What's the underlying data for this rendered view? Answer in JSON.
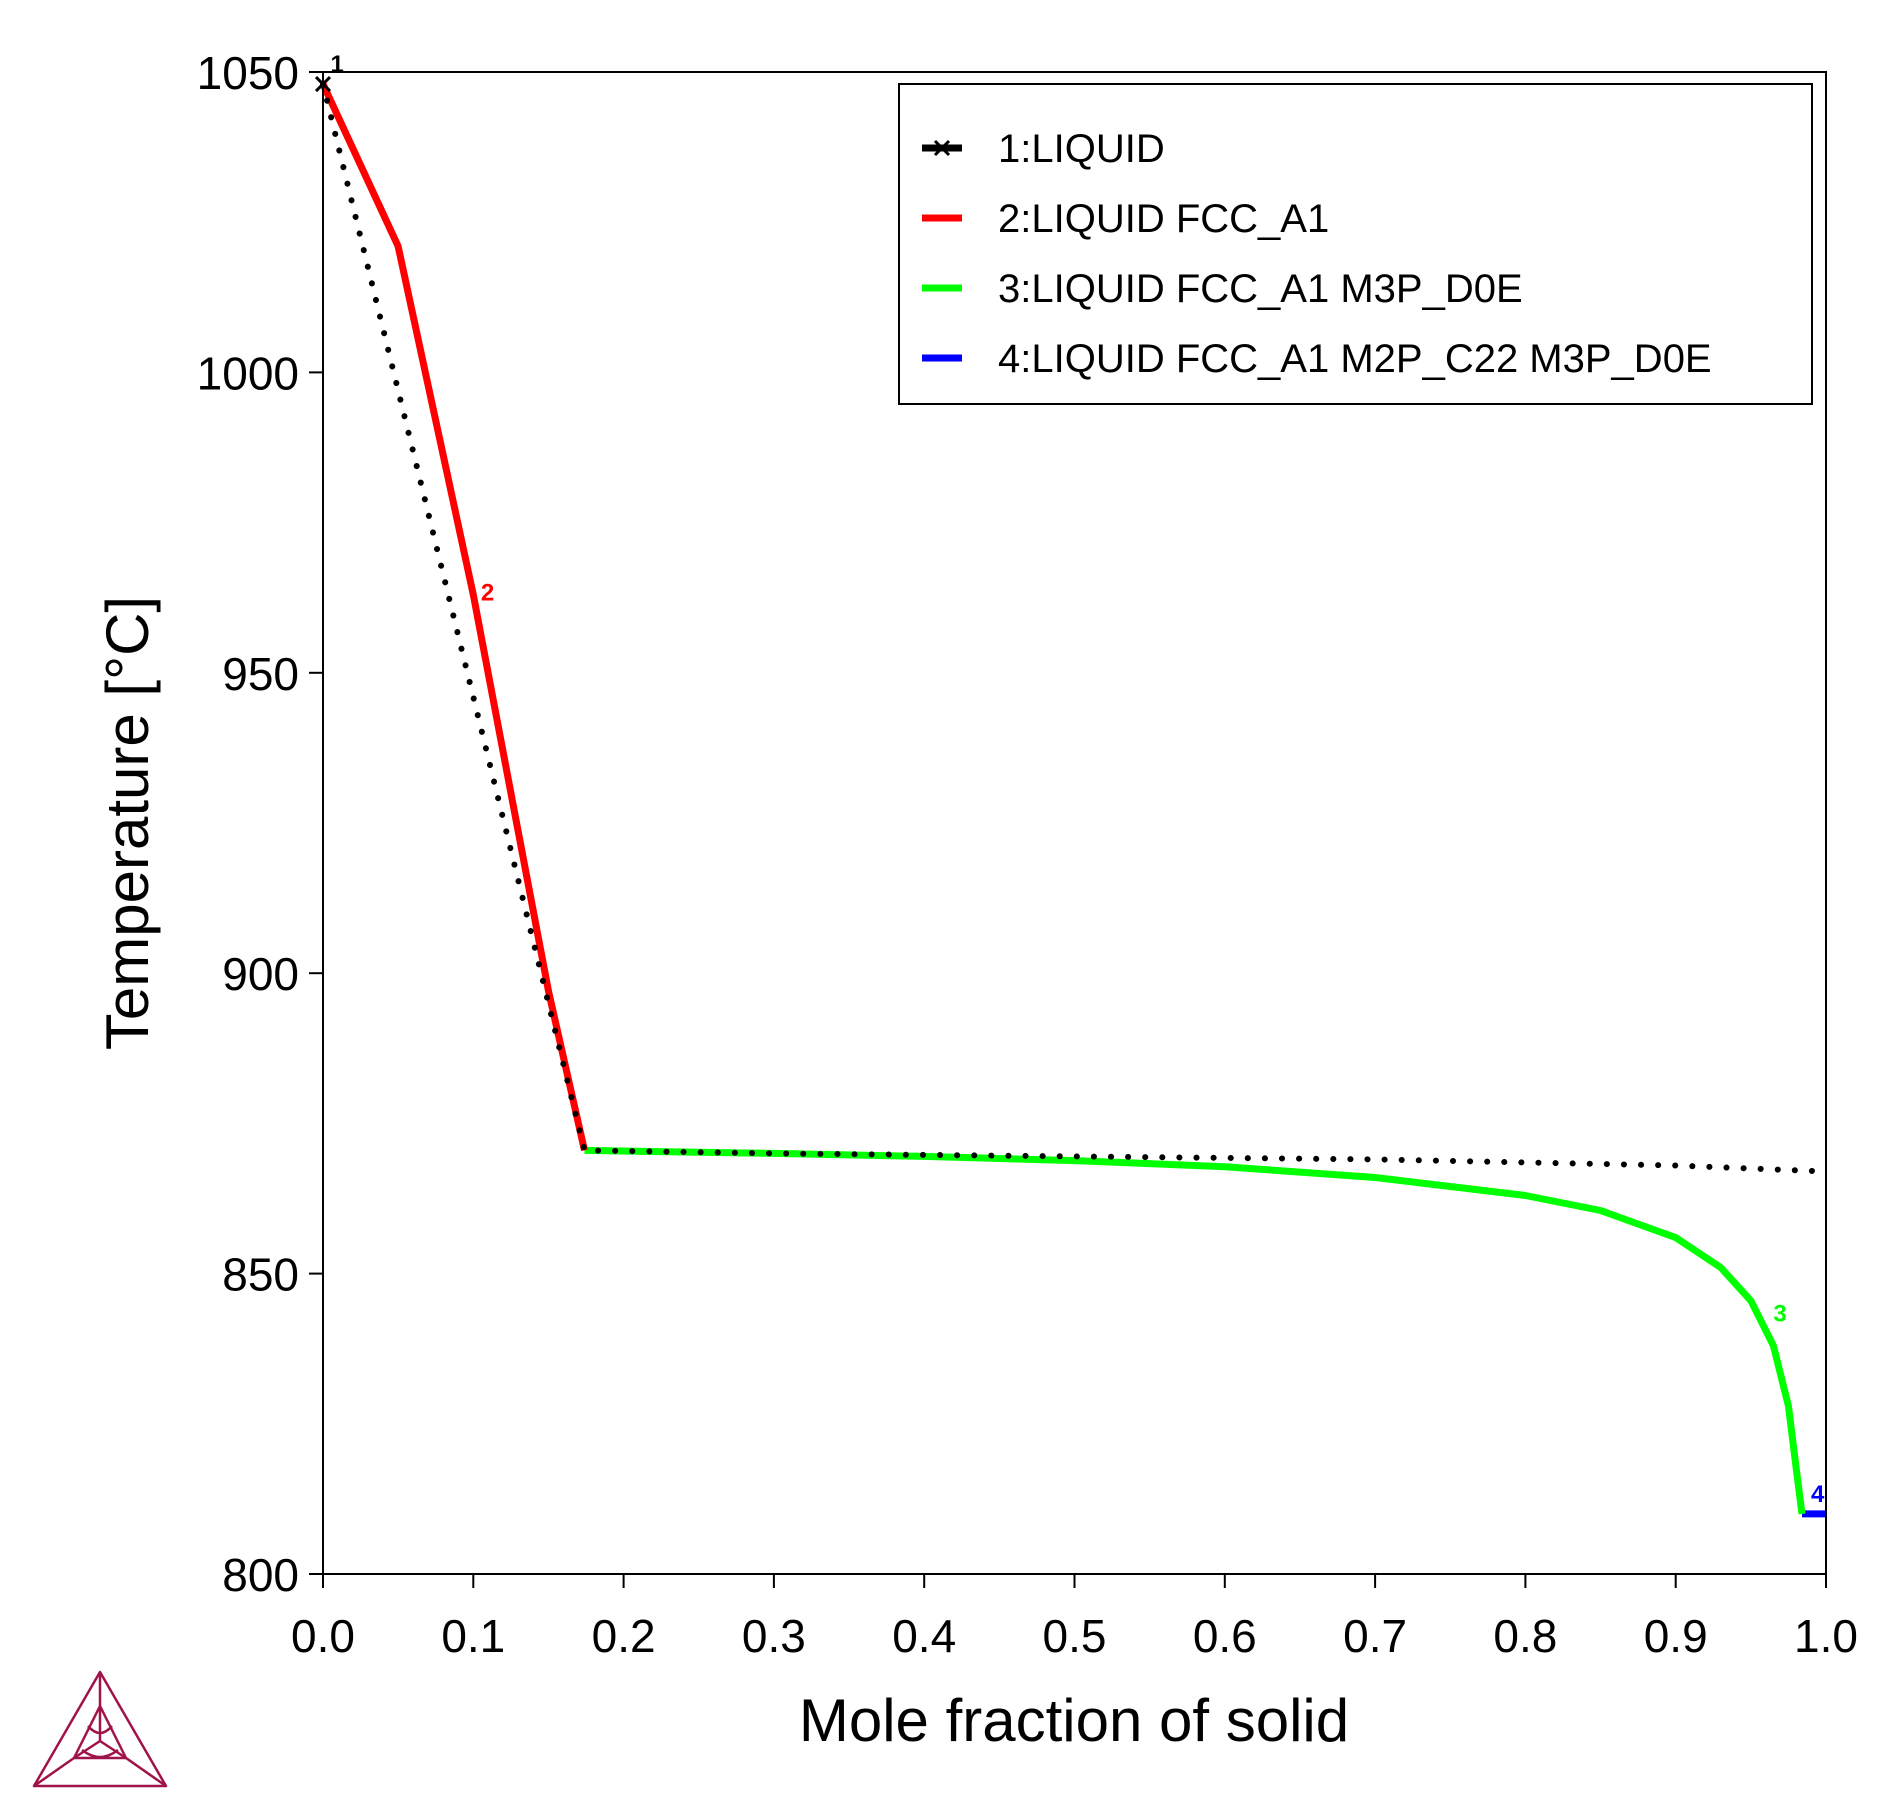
{
  "chart_data": {
    "type": "line",
    "xlabel": "Mole fraction of solid",
    "ylabel": "Temperature [°C]",
    "xlim": [
      0,
      1
    ],
    "ylim": [
      800,
      1050
    ],
    "x_ticks": [
      "0.0",
      "0.1",
      "0.2",
      "0.3",
      "0.4",
      "0.5",
      "0.6",
      "0.7",
      "0.8",
      "0.9",
      "1.0"
    ],
    "y_ticks": [
      "800",
      "850",
      "900",
      "950",
      "1000",
      "1050"
    ],
    "legend_position": "top-right",
    "grid": false,
    "series": [
      {
        "name": "1:LIQUID",
        "label": "1",
        "color": "#000000",
        "style": "dotted",
        "marker": "x",
        "points": [
          [
            0,
            1048
          ],
          [
            0.174,
            870.5
          ],
          [
            0.3,
            870
          ],
          [
            0.5,
            869.5
          ],
          [
            0.7,
            869
          ],
          [
            0.9,
            868
          ],
          [
            1.0,
            867
          ]
        ]
      },
      {
        "name": "2:LIQUID FCC_A1",
        "label": "2",
        "color": "#ff0000",
        "style": "solid",
        "points": [
          [
            0,
            1048
          ],
          [
            0.05,
            1021
          ],
          [
            0.1,
            963
          ],
          [
            0.15,
            897
          ],
          [
            0.174,
            870.5
          ]
        ]
      },
      {
        "name": "3:LIQUID FCC_A1 M3P_D0E",
        "label": "3",
        "color": "#00ff00",
        "style": "solid",
        "points": [
          [
            0.174,
            870.5
          ],
          [
            0.3,
            870
          ],
          [
            0.4,
            869.5
          ],
          [
            0.5,
            868.8
          ],
          [
            0.6,
            867.8
          ],
          [
            0.7,
            866
          ],
          [
            0.8,
            863
          ],
          [
            0.85,
            860.5
          ],
          [
            0.9,
            856
          ],
          [
            0.93,
            851
          ],
          [
            0.95,
            845.5
          ],
          [
            0.965,
            838
          ],
          [
            0.975,
            828
          ],
          [
            0.98,
            818
          ],
          [
            0.984,
            810
          ]
        ]
      },
      {
        "name": "4:LIQUID FCC_A1 M2P_C22 M3P_D0E",
        "label": "4",
        "color": "#0000ff",
        "style": "solid",
        "points": [
          [
            0.984,
            810
          ],
          [
            1.0,
            810
          ]
        ]
      }
    ]
  }
}
